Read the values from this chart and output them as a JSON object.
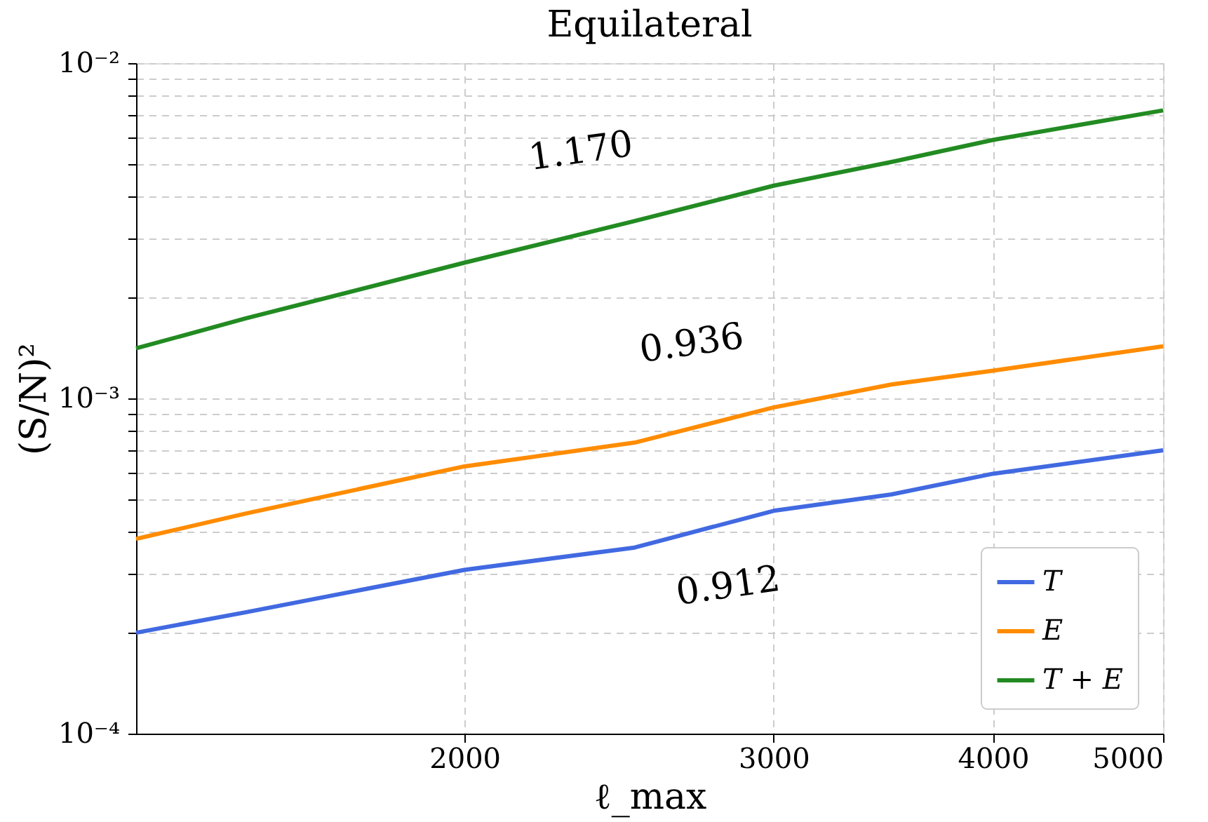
{
  "chart_data": {
    "type": "line",
    "title": "Equilateral",
    "xlabel": "ℓ_max",
    "ylabel": "(S/N)²",
    "x": [
      1300,
      1500,
      2000,
      2500,
      3000,
      3500,
      4000,
      5000
    ],
    "series": [
      {
        "name": "T",
        "color": "#4169e1",
        "values": [
          0.0002,
          0.00023,
          0.000308,
          0.000359,
          0.000462,
          0.000517,
          0.000596,
          0.0007
        ]
      },
      {
        "name": "E",
        "color": "#ff8c00",
        "values": [
          0.000381,
          0.000453,
          0.000627,
          0.000738,
          0.00094,
          0.0011,
          0.00121,
          0.00143
        ]
      },
      {
        "name": "T + E",
        "color": "#228b22",
        "values": [
          0.00141,
          0.00173,
          0.00254,
          0.00338,
          0.00431,
          0.00507,
          0.0059,
          0.00723
        ]
      }
    ],
    "annotations": [
      "1.170",
      "0.936",
      "0.912"
    ],
    "log": "xy",
    "xlim": [
      1300,
      5000
    ],
    "xticks": [
      2000,
      3000,
      4000,
      5000
    ],
    "ylim": [
      0.0001,
      0.01
    ],
    "yticks": [
      {
        "value": 0.0001,
        "label": "10⁻⁴"
      },
      {
        "value": 0.0002,
        "label": null
      },
      {
        "value": 0.0003,
        "label": null
      },
      {
        "value": 0.0004,
        "label": null
      },
      {
        "value": 0.0005,
        "label": null
      },
      {
        "value": 0.0006,
        "label": null
      },
      {
        "value": 0.0007,
        "label": null
      },
      {
        "value": 0.0008,
        "label": null
      },
      {
        "value": 0.0009,
        "label": null
      },
      {
        "value": 0.001,
        "label": "10⁻³"
      },
      {
        "value": 0.002,
        "label": null
      },
      {
        "value": 0.003,
        "label": null
      },
      {
        "value": 0.004,
        "label": null
      },
      {
        "value": 0.005,
        "label": null
      },
      {
        "value": 0.006,
        "label": null
      },
      {
        "value": 0.007,
        "label": null
      },
      {
        "value": 0.008,
        "label": null
      },
      {
        "value": 0.009,
        "label": null
      },
      {
        "value": 0.01,
        "label": "10⁻²"
      }
    ],
    "grid": true,
    "legend": "bottom right",
    "line_style": "solid",
    "marker": "none"
  }
}
